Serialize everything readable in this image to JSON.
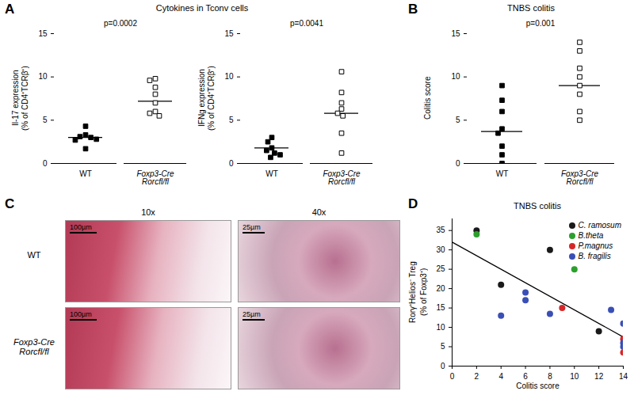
{
  "chart_data": [
    {
      "panel": "A",
      "title": "Cytokines in Tconv cells",
      "type": "dot",
      "categories": [
        "WT",
        "Foxp3-Cre\nRorcfl/fl"
      ],
      "y_label": "Il-17 expression\n(% of CD4⁺TCRβ⁺)",
      "annotation": "p=0.0002",
      "ylim": [
        0,
        15
      ],
      "yticks": [
        0,
        5,
        10,
        15
      ],
      "groups": [
        {
          "marker": "filled square",
          "values": [
            4.3,
            3.3,
            3.1,
            3.0,
            2.8,
            2.7,
            1.7
          ],
          "line": 3.0
        },
        {
          "marker": "open square",
          "values": [
            9.8,
            9.6,
            8.8,
            8.0,
            7.0,
            6.0,
            5.8,
            5.5
          ],
          "line": 7.2
        }
      ]
    },
    {
      "type": "dot",
      "categories": [
        "WT",
        "Foxp3-Cre\nRorcfl/fl"
      ],
      "y_label": "IFNg expression\n(% of CD4⁺TCRβ⁺)",
      "annotation": "p=0.0041",
      "ylim": [
        0,
        15
      ],
      "yticks": [
        0,
        5,
        10,
        15
      ],
      "groups": [
        {
          "marker": "filled square",
          "values": [
            3.0,
            2.5,
            1.8,
            1.5,
            1.2,
            1.0,
            0.7
          ],
          "line": 1.8
        },
        {
          "marker": "open square",
          "values": [
            10.6,
            8.2,
            7.0,
            6.3,
            5.8,
            5.5,
            3.5,
            1.2
          ],
          "line": 5.8
        }
      ]
    },
    {
      "panel": "B",
      "title": "TNBS colitis",
      "type": "dot",
      "categories": [
        "WT",
        "Foxp3-Cre\nRorcfl/fl"
      ],
      "y_label": "Colitis score",
      "annotation": "p=0.001",
      "ylim": [
        0,
        15
      ],
      "yticks": [
        0,
        5,
        10,
        15
      ],
      "groups": [
        {
          "marker": "filled square",
          "values": [
            9,
            7.3,
            6,
            4,
            3.5,
            2,
            1,
            0
          ],
          "line": 3.7
        },
        {
          "marker": "open square",
          "values": [
            14,
            13,
            11,
            10,
            9,
            8,
            6,
            5
          ],
          "line": 9
        }
      ]
    },
    {
      "panel": "D",
      "title": "TNBS colitis",
      "type": "scatter",
      "x_label": "Colitis score",
      "y_label": "Rorγ⁺Helios⁻ Treg\n(% of Foxp3⁺)",
      "xlim": [
        0,
        14
      ],
      "xticks": [
        0,
        2,
        4,
        6,
        8,
        10,
        12,
        14
      ],
      "ylim": [
        0,
        38
      ],
      "yticks": [
        0,
        5,
        10,
        15,
        20,
        25,
        30,
        35
      ],
      "legend": "top-right",
      "series": [
        {
          "name": "C. ramosum",
          "color": "#1a1a1a",
          "x": [
            2,
            4,
            8,
            12
          ],
          "values": [
            35,
            21,
            30,
            9
          ]
        },
        {
          "name": "B.theta",
          "color": "#2ca02c",
          "x": [
            2,
            10
          ],
          "values": [
            34,
            25
          ]
        },
        {
          "name": "P.magnus",
          "color": "#d62728",
          "x": [
            9,
            14,
            14
          ],
          "values": [
            15,
            7,
            3.5
          ]
        },
        {
          "name": "B. fragilis",
          "color": "#3a4fb5",
          "x": [
            4,
            6,
            6,
            8,
            13,
            14,
            14,
            14
          ],
          "values": [
            13,
            19,
            17,
            13.5,
            14.5,
            11,
            6,
            5
          ]
        }
      ],
      "fit": {
        "x": [
          0,
          14
        ],
        "values": [
          32,
          7.5
        ]
      }
    }
  ],
  "panel_c": {
    "panel": "C",
    "columns": [
      "10x",
      "40x"
    ],
    "rows": [
      "WT",
      "Foxp3-Cre\nRorcfl/fl"
    ],
    "scale_bars": [
      "100µm",
      "25µm"
    ]
  }
}
